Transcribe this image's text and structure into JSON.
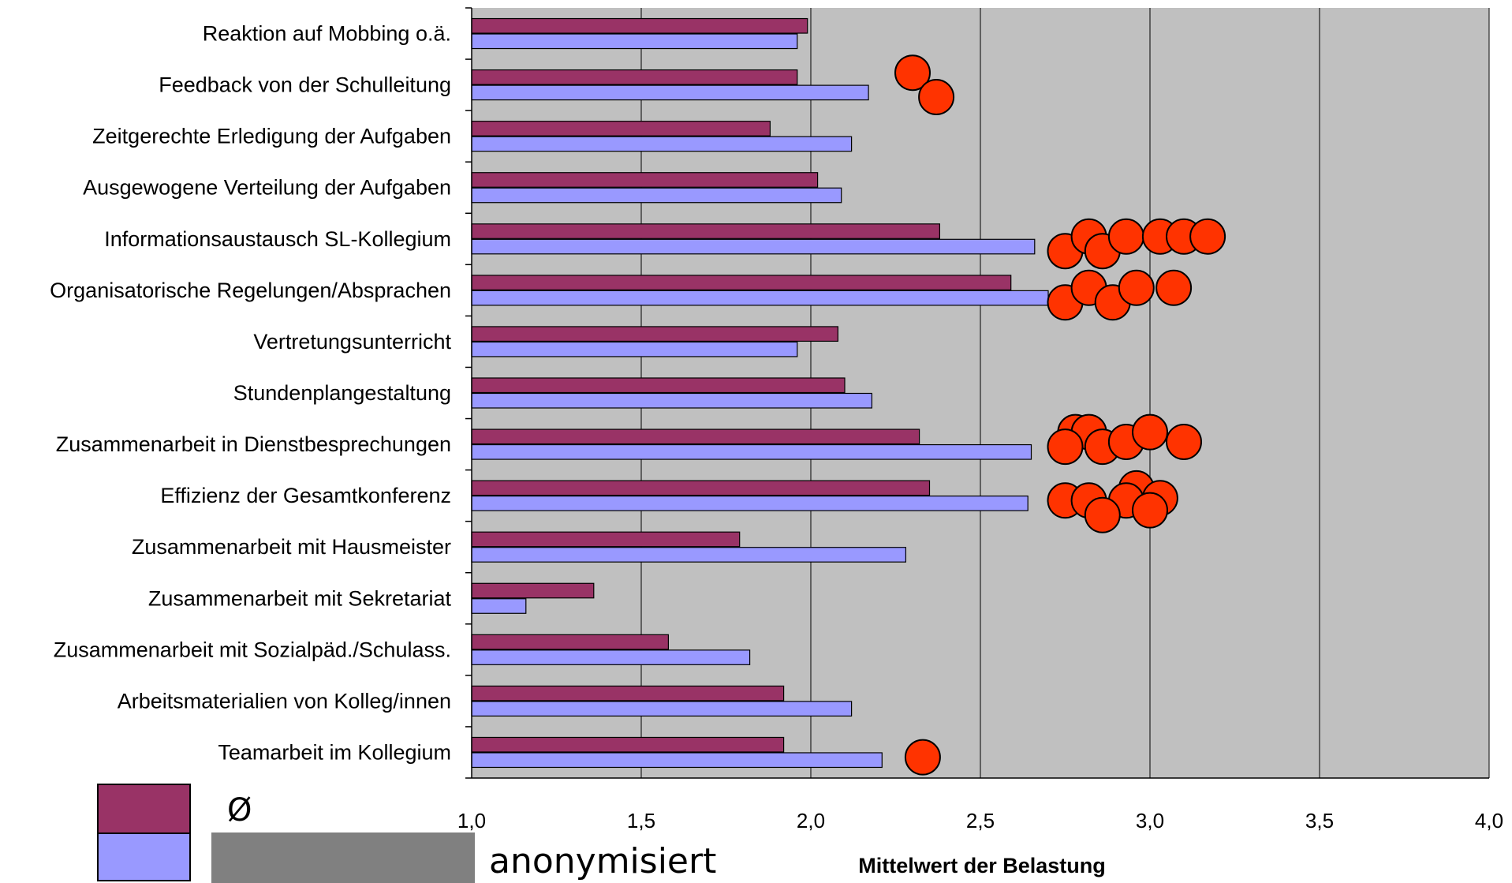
{
  "chart_data": {
    "type": "bar",
    "orientation": "horizontal",
    "categories": [
      "Reaktion auf Mobbing o.ä.",
      "Feedback von der Schulleitung",
      "Zeitgerechte Erledigung der Aufgaben",
      "Ausgewogene Verteilung der Aufgaben",
      "Informationsaustausch SL-Kollegium",
      "Organisatorische Regelungen/Absprachen",
      "Vertretungsunterricht",
      "Stundenplangestaltung",
      "Zusammenarbeit in Dienstbesprechungen",
      "Effizienz der Gesamtkonferenz",
      "Zusammenarbeit mit Hausmeister",
      "Zusammenarbeit mit Sekretariat",
      "Zusammenarbeit mit Sozialpäd./Schulass.",
      "Arbeitsmaterialien von Kolleg/innen",
      "Teamarbeit im Kollegium"
    ],
    "series": [
      {
        "name": "Ø",
        "color": "#993366",
        "values": [
          1.99,
          1.96,
          1.88,
          2.02,
          2.38,
          2.59,
          2.08,
          2.1,
          2.32,
          2.35,
          1.79,
          1.36,
          1.58,
          1.92,
          1.92
        ]
      },
      {
        "name": "anonymisiert",
        "color": "#9999ff",
        "values": [
          1.96,
          2.17,
          2.12,
          2.09,
          2.66,
          2.7,
          1.96,
          2.18,
          2.65,
          2.64,
          2.28,
          1.16,
          1.82,
          2.12,
          2.21
        ]
      }
    ],
    "markers": {
      "color": "#ff3300",
      "rows": [
        {
          "category_index": 1,
          "values": [
            2.3,
            2.37
          ],
          "offsets": [
            -0.5,
            0.5
          ]
        },
        {
          "category_index": 4,
          "values": [
            2.75,
            2.82,
            2.86,
            2.93,
            3.03,
            3.1,
            3.17
          ],
          "offsets": [
            0.5,
            -0.1,
            0.5,
            -0.1,
            -0.1,
            -0.1,
            -0.1
          ]
        },
        {
          "category_index": 5,
          "values": [
            2.75,
            2.82,
            2.89,
            2.96,
            3.07
          ],
          "offsets": [
            0.5,
            -0.1,
            0.5,
            -0.1,
            -0.1
          ]
        },
        {
          "category_index": 8,
          "values": [
            2.78,
            2.82,
            2.75,
            2.86,
            2.93,
            3.0,
            3.1
          ],
          "offsets": [
            -0.5,
            -0.5,
            0.1,
            0.1,
            -0.1,
            -0.5,
            -0.1
          ]
        },
        {
          "category_index": 9,
          "values": [
            2.96,
            2.75,
            2.82,
            2.93,
            3.03,
            3.0,
            2.86
          ],
          "offsets": [
            -0.3,
            0.2,
            0.2,
            0.2,
            0.1,
            0.6,
            0.8
          ]
        },
        {
          "category_index": 14,
          "values": [
            2.33
          ],
          "offsets": [
            0.2
          ]
        }
      ]
    },
    "xlabel": "Mittelwert der Belastung",
    "xlim": [
      1.0,
      4.0
    ],
    "xticks": [
      1.0,
      1.5,
      2.0,
      2.5,
      3.0,
      3.5,
      4.0
    ],
    "xtick_labels": [
      "1,0",
      "1,5",
      "2,0",
      "2,5",
      "3,0",
      "3,5",
      "4,0"
    ],
    "grid": true,
    "plot_background": "#c0c0c0",
    "legend": {
      "position": "bottom-left",
      "entries": [
        "Ø",
        "anonymisiert"
      ]
    }
  }
}
